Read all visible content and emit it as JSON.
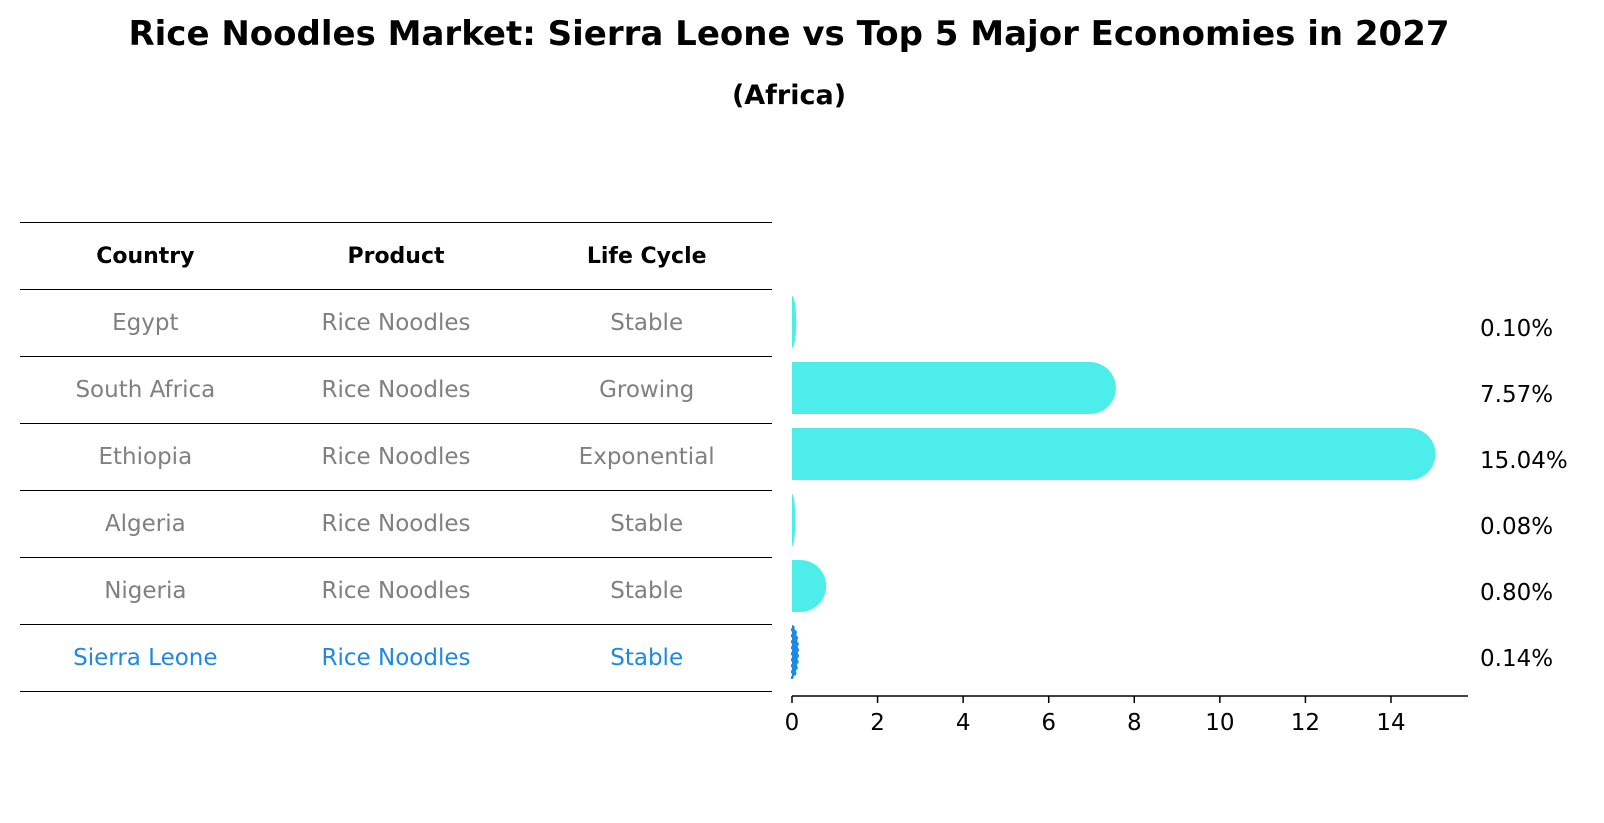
{
  "title": "Rice Noodles Market: Sierra Leone vs Top 5 Major Economies in 2027",
  "subtitle": "(Africa)",
  "table": {
    "headers": [
      "Country",
      "Product",
      "Life Cycle"
    ],
    "rows": [
      {
        "country": "Egypt",
        "product": "Rice Noodles",
        "life_cycle": "Stable"
      },
      {
        "country": "South Africa",
        "product": "Rice Noodles",
        "life_cycle": "Growing"
      },
      {
        "country": "Ethiopia",
        "product": "Rice Noodles",
        "life_cycle": "Exponential"
      },
      {
        "country": "Algeria",
        "product": "Rice Noodles",
        "life_cycle": "Stable"
      },
      {
        "country": "Nigeria",
        "product": "Rice Noodles",
        "life_cycle": "Stable"
      },
      {
        "country": "Sierra Leone",
        "product": "Rice Noodles",
        "life_cycle": "Stable"
      }
    ]
  },
  "colors": {
    "bar": "#4deeea",
    "highlight": "#1e88e5",
    "row_text": "#808080"
  },
  "chart_data": {
    "type": "bar",
    "orientation": "horizontal",
    "categories": [
      "Egypt",
      "South Africa",
      "Ethiopia",
      "Algeria",
      "Nigeria",
      "Sierra Leone"
    ],
    "values": [
      0.1,
      7.57,
      15.04,
      0.08,
      0.8,
      0.14
    ],
    "value_labels": [
      "0.10%",
      "7.57%",
      "15.04%",
      "0.08%",
      "0.80%",
      "0.14%"
    ],
    "highlight": "Sierra Leone",
    "xlim": [
      0,
      15.8
    ],
    "xticks": [
      "0",
      "2",
      "4",
      "6",
      "8",
      "10",
      "12",
      "14"
    ],
    "grid": false
  }
}
